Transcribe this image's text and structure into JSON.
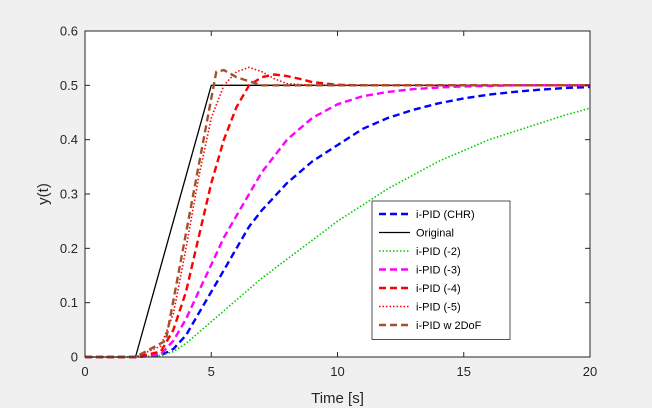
{
  "chart_data": {
    "type": "line",
    "title": "",
    "xlabel": "Time [s]",
    "ylabel": "y(t)",
    "xlim": [
      0,
      20
    ],
    "ylim": [
      0,
      0.6
    ],
    "xticks": [
      "0",
      "5",
      "10",
      "15",
      "20"
    ],
    "yticks": [
      "0",
      "0.1",
      "0.2",
      "0.3",
      "0.4",
      "0.5",
      "0.6"
    ],
    "grid": false,
    "legend_position": "lower-right",
    "series": [
      {
        "name": "i-PID (CHR)",
        "color": "#0000ff",
        "style": "dashed",
        "x": [
          0,
          2,
          3,
          3.5,
          4,
          4.5,
          5,
          5.5,
          6,
          6.5,
          7,
          8,
          9,
          10,
          11,
          12,
          13,
          14,
          15,
          16,
          17,
          18,
          19,
          20
        ],
        "y": [
          0,
          0,
          0.003,
          0.015,
          0.04,
          0.08,
          0.12,
          0.16,
          0.2,
          0.24,
          0.27,
          0.32,
          0.36,
          0.39,
          0.42,
          0.44,
          0.455,
          0.467,
          0.476,
          0.483,
          0.488,
          0.492,
          0.495,
          0.497
        ]
      },
      {
        "name": "Original",
        "color": "#000000",
        "style": "solid",
        "x": [
          0,
          2,
          5,
          20
        ],
        "y": [
          0,
          0,
          0.5,
          0.5
        ]
      },
      {
        "name": "i-PID (-2)",
        "color": "#00cc00",
        "style": "dotted",
        "x": [
          0,
          2,
          3,
          3.5,
          4,
          4.5,
          5,
          5.5,
          6,
          7,
          8,
          9,
          10,
          11,
          12,
          13,
          14,
          15,
          16,
          17,
          18,
          19,
          20
        ],
        "y": [
          0,
          0,
          0.003,
          0.01,
          0.025,
          0.045,
          0.065,
          0.085,
          0.105,
          0.145,
          0.18,
          0.215,
          0.25,
          0.28,
          0.31,
          0.335,
          0.36,
          0.38,
          0.4,
          0.415,
          0.43,
          0.445,
          0.458
        ]
      },
      {
        "name": "i-PID (-3)",
        "color": "#ff00ff",
        "style": "dashed",
        "x": [
          0,
          2,
          3,
          3.5,
          4,
          4.5,
          5,
          5.5,
          6,
          6.5,
          7,
          7.5,
          8,
          9,
          10,
          11,
          12,
          13,
          14,
          15,
          16,
          17,
          18,
          19,
          20
        ],
        "y": [
          0,
          0,
          0.005,
          0.03,
          0.07,
          0.12,
          0.17,
          0.22,
          0.26,
          0.3,
          0.34,
          0.37,
          0.4,
          0.44,
          0.465,
          0.48,
          0.488,
          0.493,
          0.496,
          0.498,
          0.499,
          0.5,
          0.5,
          0.5,
          0.5
        ]
      },
      {
        "name": "i-PID (-4)",
        "color": "#ff0000",
        "style": "dashed",
        "x": [
          0,
          2,
          3,
          3.5,
          4,
          4.5,
          5,
          5.5,
          6,
          6.5,
          7,
          7.5,
          8,
          8.5,
          9,
          10,
          11,
          12,
          14,
          16,
          18,
          20
        ],
        "y": [
          0,
          0,
          0.01,
          0.05,
          0.12,
          0.22,
          0.32,
          0.4,
          0.46,
          0.5,
          0.515,
          0.52,
          0.517,
          0.512,
          0.506,
          0.501,
          0.5,
          0.5,
          0.5,
          0.5,
          0.5,
          0.5
        ]
      },
      {
        "name": "i-PID (-5)",
        "color": "#ff0000",
        "style": "dotted",
        "x": [
          0,
          2,
          3,
          3.5,
          4,
          4.5,
          5,
          5.5,
          6,
          6.5,
          7,
          7.5,
          8,
          9,
          10,
          12,
          14,
          16,
          18,
          20
        ],
        "y": [
          0,
          0,
          0.02,
          0.08,
          0.2,
          0.33,
          0.44,
          0.5,
          0.525,
          0.533,
          0.525,
          0.512,
          0.503,
          0.5,
          0.5,
          0.5,
          0.5,
          0.5,
          0.5,
          0.5
        ]
      },
      {
        "name": "i-PID w 2DoF",
        "color": "#a0522d",
        "style": "dashed",
        "x": [
          0,
          2,
          3.2,
          5.2,
          5.5,
          6,
          7,
          8,
          10,
          12,
          14,
          16,
          18,
          20
        ],
        "y": [
          0,
          0,
          0.03,
          0.525,
          0.528,
          0.515,
          0.5,
          0.5,
          0.5,
          0.5,
          0.5,
          0.5,
          0.5,
          0.5
        ]
      }
    ]
  }
}
